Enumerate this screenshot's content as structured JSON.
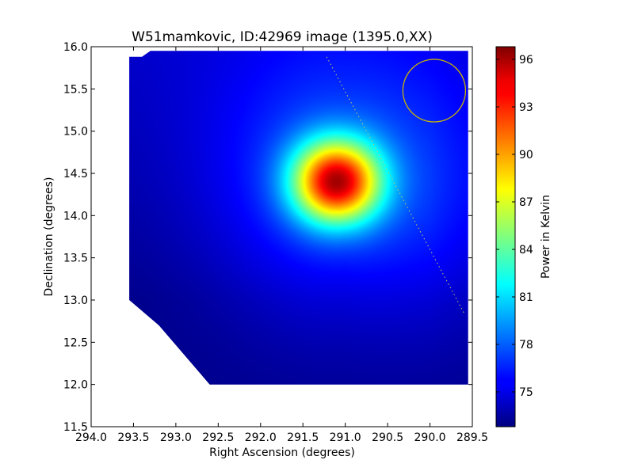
{
  "chart_data": {
    "type": "heatmap",
    "title": "W51mamkovic, ID:42969 image (1395.0,XX)",
    "xlabel": "Right Ascension (degrees)",
    "ylabel": "Declination (degrees)",
    "xlim": [
      294.0,
      289.5
    ],
    "ylim": [
      11.5,
      16.0
    ],
    "xticks": [
      "294.0",
      "293.5",
      "293.0",
      "292.5",
      "292.0",
      "291.5",
      "291.0",
      "290.5",
      "290.0",
      "289.5"
    ],
    "yticks": [
      "11.5",
      "12.0",
      "12.5",
      "13.0",
      "13.5",
      "14.0",
      "14.5",
      "15.0",
      "15.5",
      "16.0"
    ],
    "grid": false,
    "colormap": "jet",
    "colorbar": {
      "label": "Power in Kelvin",
      "range": [
        72.8,
        96.8
      ],
      "ticks": [
        "75",
        "78",
        "81",
        "84",
        "87",
        "90",
        "93",
        "96"
      ]
    },
    "data_region": {
      "ra_range": [
        293.55,
        289.55
      ],
      "dec_range": [
        12.0,
        15.95
      ],
      "outline": [
        [
          293.55,
          15.88
        ],
        [
          293.4,
          15.88
        ],
        [
          293.3,
          15.95
        ],
        [
          289.55,
          15.95
        ],
        [
          289.55,
          12.0
        ],
        [
          292.6,
          12.0
        ],
        [
          293.2,
          12.7
        ],
        [
          293.55,
          13.0
        ]
      ]
    },
    "source": {
      "ra": 291.1,
      "dec": 14.4,
      "peak_kelvin": 96.8
    },
    "background_kelvin": 73.0,
    "beam_circle": {
      "ra": 289.95,
      "dec": 15.48,
      "radius_deg": 0.37,
      "color": "#c8b400"
    },
    "dotted_line": {
      "from": [
        291.22,
        15.88
      ],
      "to": [
        289.6,
        12.85
      ],
      "color": "#c8c864"
    }
  }
}
